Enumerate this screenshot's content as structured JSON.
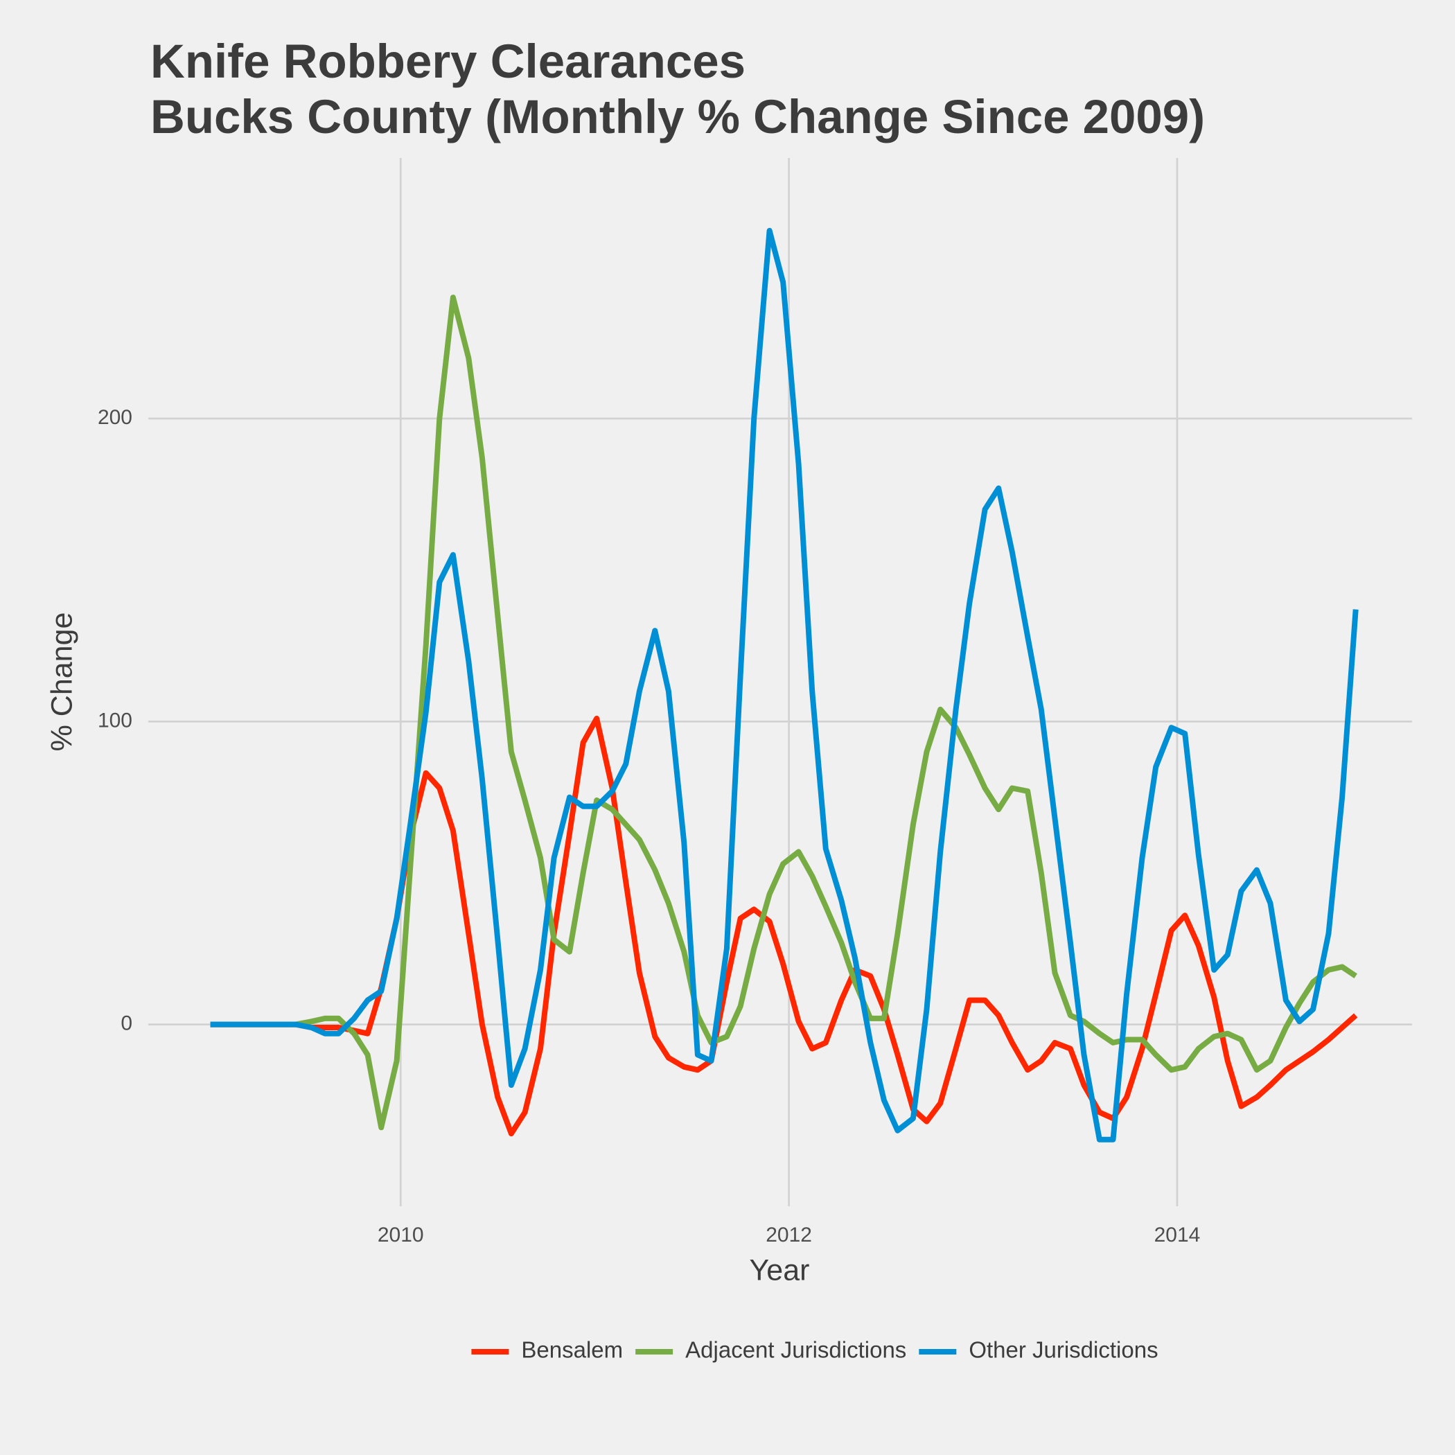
{
  "chart_data": {
    "type": "line",
    "title": [
      "Knife Robbery Clearances",
      "Bucks County (Monthly % Change Since 2009)"
    ],
    "x_label": "Year",
    "y_label": "% Change",
    "x": [
      2009.02,
      2009.09,
      2009.17,
      2009.24,
      2009.31,
      2009.39,
      2009.46,
      2009.54,
      2009.61,
      2009.68,
      2009.76,
      2009.83,
      2009.9,
      2009.98,
      2010.05,
      2010.13,
      2010.2,
      2010.27,
      2010.35,
      2010.42,
      2010.5,
      2010.57,
      2010.64,
      2010.72,
      2010.79,
      2010.87,
      2010.94,
      2011.01,
      2011.09,
      2011.16,
      2011.23,
      2011.31,
      2011.38,
      2011.46,
      2011.53,
      2011.6,
      2011.68,
      2011.75,
      2011.82,
      2011.9,
      2011.97,
      2012.05,
      2012.12,
      2012.19,
      2012.27,
      2012.34,
      2012.42,
      2012.49,
      2012.56,
      2012.64,
      2012.71,
      2012.78,
      2012.86,
      2012.93,
      2013.01,
      2013.08,
      2013.15,
      2013.23,
      2013.3,
      2013.37,
      2013.45,
      2013.52,
      2013.6,
      2013.67,
      2013.74,
      2013.82,
      2013.89,
      2013.97,
      2014.04,
      2014.11,
      2014.19,
      2014.26,
      2014.33,
      2014.41,
      2014.48,
      2014.56,
      2014.63,
      2014.7,
      2014.78,
      2014.85,
      2014.92
    ],
    "series": [
      {
        "name": "Bensalem",
        "color": "#ff2700",
        "values": [
          0,
          0,
          0,
          0,
          0,
          0,
          0,
          -1,
          -1,
          -1,
          -2,
          -3,
          12,
          35,
          62,
          83,
          78,
          64,
          30,
          0,
          -24,
          -36,
          -29,
          -8,
          30,
          63,
          93,
          101,
          78,
          47,
          17,
          -4,
          -11,
          -14,
          -15,
          -12,
          14,
          35,
          38,
          34,
          20,
          1,
          -8,
          -6,
          8,
          18,
          16,
          5,
          -10,
          -28,
          -32,
          -26,
          -8,
          8,
          8,
          3,
          -6,
          -15,
          -12,
          -6,
          -8,
          -20,
          -29,
          -31,
          -24,
          -8,
          10,
          31,
          36,
          26,
          9,
          -12,
          -27,
          -24,
          -20,
          -15,
          -12,
          -9,
          -5,
          -1,
          3
        ]
      },
      {
        "name": "Adjacent Jurisdictions",
        "color": "#77ab43",
        "values": [
          0,
          0,
          0,
          0,
          0,
          0,
          0,
          1,
          2,
          2,
          -3,
          -10,
          -34,
          -12,
          52,
          125,
          200,
          240,
          220,
          187,
          135,
          90,
          74,
          55,
          28,
          24,
          50,
          74,
          71,
          66,
          61,
          51,
          40,
          24,
          3,
          -6,
          -4,
          6,
          25,
          43,
          53,
          57,
          49,
          39,
          27,
          14,
          2,
          2,
          30,
          66,
          90,
          104,
          98,
          89,
          78,
          71,
          78,
          77,
          50,
          17,
          3,
          1,
          -3,
          -6,
          -5,
          -5,
          -10,
          -15,
          -14,
          -8,
          -4,
          -3,
          -5,
          -15,
          -12,
          -1,
          7,
          14,
          18,
          19,
          16
        ]
      },
      {
        "name": "Other Jurisdictions",
        "color": "#008fd5",
        "values": [
          0,
          0,
          0,
          0,
          0,
          0,
          0,
          -1,
          -3,
          -3,
          2,
          8,
          11,
          35,
          66,
          103,
          146,
          155,
          120,
          81,
          28,
          -20,
          -8,
          18,
          55,
          75,
          72,
          72,
          77,
          86,
          110,
          130,
          110,
          60,
          -10,
          -12,
          25,
          115,
          200,
          262,
          245,
          185,
          110,
          58,
          41,
          22,
          -6,
          -25,
          -35,
          -31,
          5,
          57,
          104,
          139,
          170,
          177,
          156,
          128,
          104,
          68,
          27,
          -10,
          -38,
          -38,
          10,
          55,
          85,
          98,
          96,
          56,
          18,
          23,
          44,
          51,
          40,
          8,
          1,
          5,
          30,
          75,
          137
        ]
      }
    ],
    "xlim": [
      2008.7,
      2015.21
    ],
    "xticks": [
      2010,
      2012,
      2014
    ],
    "ylim": [
      -60,
      286
    ],
    "yticks": [
      0,
      100,
      200
    ],
    "grid": true,
    "legend": "bottom"
  }
}
